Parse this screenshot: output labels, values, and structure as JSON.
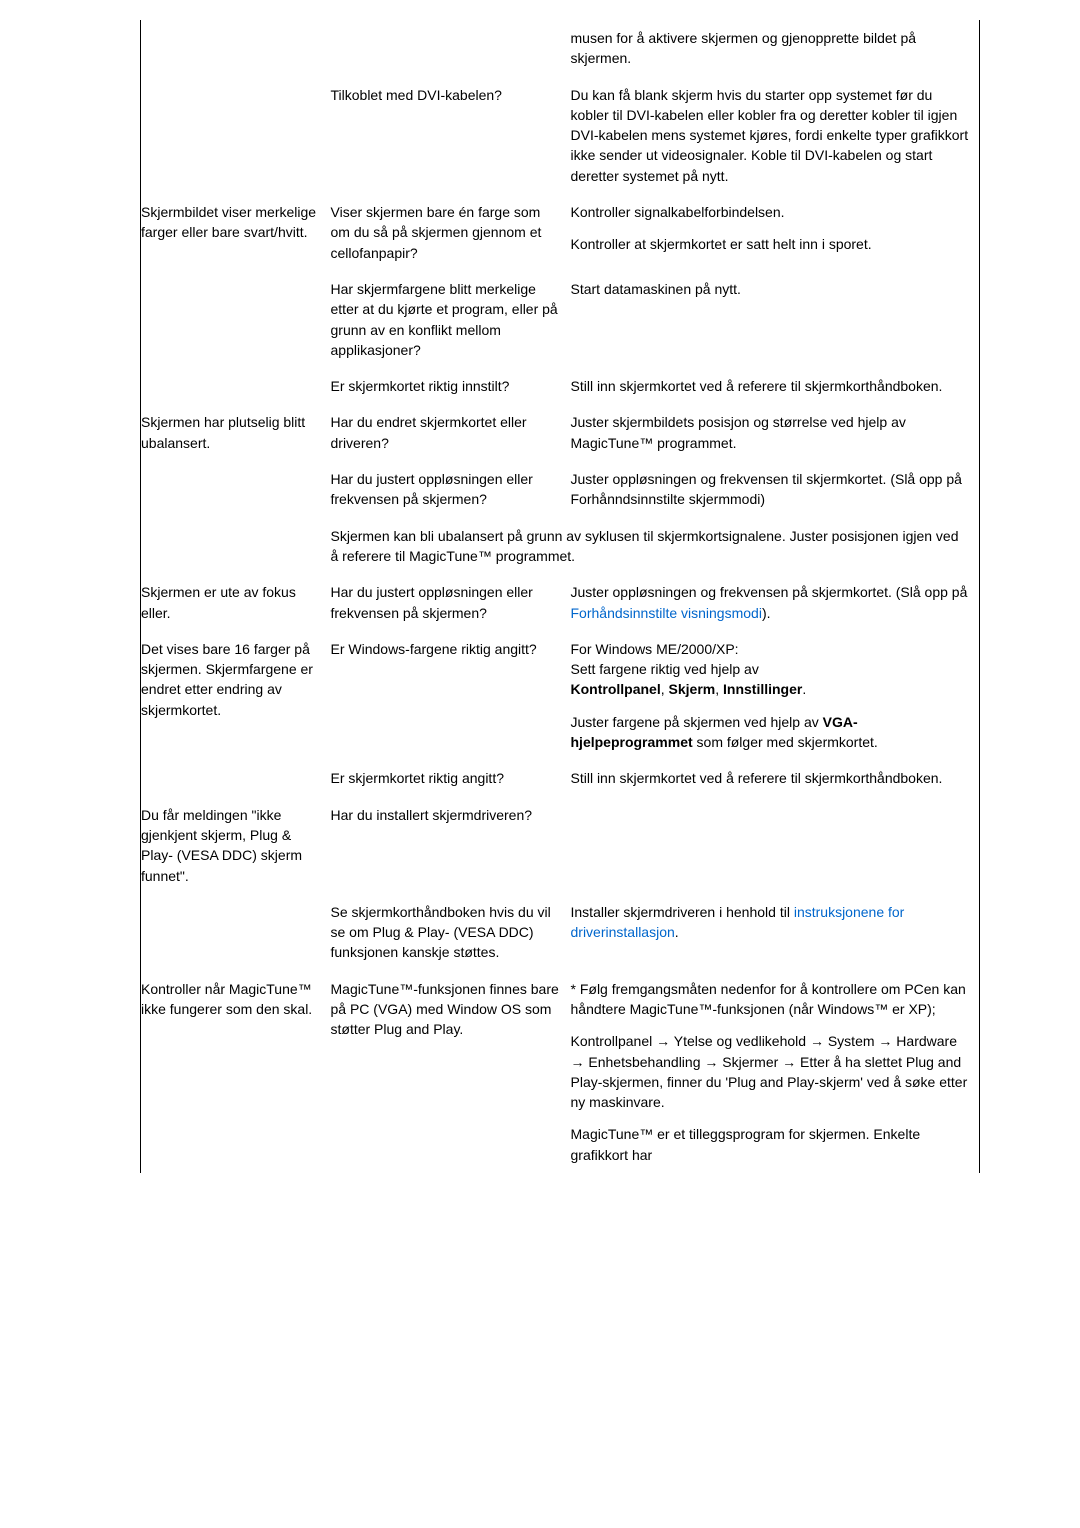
{
  "rows": [
    {
      "c1": "",
      "c2": "",
      "c3": "musen for å aktivere skjermen og gjenopprette bildet på skjermen.",
      "borders": true
    },
    {
      "c1": "",
      "c2": "Tilkoblet med DVI-kabelen?",
      "c3": "Du kan få blank skjerm hvis du starter opp systemet før du kobler til DVI-kabelen eller kobler fra og deretter kobler til igjen DVI-kabelen mens systemet kjøres, fordi enkelte typer grafikkort ikke sender ut videosignaler. Koble til DVI-kabelen og start deretter systemet på nytt.",
      "borders": true
    },
    {
      "c1": "Skjermbildet viser merkelige farger eller bare svart/hvitt.",
      "c2": "Viser skjermen bare én farge som om du så på skjermen gjennom et cellofanpapir?",
      "c3_multi": [
        "Kontroller signalkabelforbindelsen.",
        "Kontroller at skjermkortet er satt helt inn i sporet."
      ],
      "borders": true
    },
    {
      "c1": "",
      "c2": "Har skjermfargene blitt merkelige etter at du kjørte et program, eller på grunn av en konflikt mellom applikasjoner?",
      "c3": "Start datamaskinen på nytt.",
      "borders": true
    },
    {
      "c1": "",
      "c2": "Er skjermkortet riktig innstilt?",
      "c3": "Still inn skjermkortet ved å referere til skjermkorthåndboken.",
      "borders": true
    },
    {
      "c1": "Skjermen har plutselig blitt ubalansert.",
      "c2": "Har du endret skjermkortet eller driveren?",
      "c3": "Juster skjermbildets posisjon og størrelse ved hjelp av MagicTune™ programmet.",
      "borders": true
    },
    {
      "c1": "",
      "c2": "Har du justert oppløsningen eller frekvensen på skjermen?",
      "c3": "Juster oppløsningen og frekvensen til skjermkortet. (Slå opp på Forhånndsinnstilte skjermmodi)",
      "borders": true
    },
    {
      "span23": "Skjermen kan bli ubalansert på grunn av syklusen til skjermkortsignalene. Juster posisjonen igjen ved å referere til MagicTune™ programmet.",
      "borders": true
    },
    {
      "c1": "Skjermen er ute av fokus eller.",
      "c2": "Har du justert oppløsningen eller frekvensen på skjermen?",
      "c3_mixed": {
        "pre": "Juster oppløsningen og frekvensen på skjermkortet.\n(Slå opp på ",
        "link": "Forhåndsinnstilte visningsmodi",
        "post": ")."
      },
      "borders": true
    },
    {
      "c1": "Det vises bare 16 farger på skjermen. Skjermfargene er endret etter endring av skjermkortet.",
      "c2": "Er Windows-fargene riktig angitt?",
      "c3_html": "<p class=\"para\">For Windows ME/2000/XP:<br>Sett fargene riktig ved hjelp av<br><span class=\"bold\">Kontrollpanel</span>, <span class=\"bold\">Skjerm</span>, <span class=\"bold\">Innstillinger</span>.</p><p class=\"para\">Juster fargene på skjermen ved hjelp av <span class=\"bold\">VGA-hjelpeprogrammet</span> som følger med skjermkortet.</p>",
      "borders": true
    },
    {
      "c1": "",
      "c2": "Er skjermkortet riktig angitt?",
      "c3": "Still inn skjermkortet ved å referere til skjermkorthåndboken.",
      "borders": true
    },
    {
      "c1": "Du får meldingen \"ikke gjenkjent skjerm, Plug & Play- (VESA DDC) skjerm funnet\".",
      "c2": "Har du installert skjermdriveren?",
      "c3": "",
      "borders": true
    },
    {
      "c1": "",
      "c2": "Se skjermkorthåndboken hvis du vil se om Plug & Play- (VESA DDC) funksjonen kanskje støttes.",
      "c3_mixed": {
        "pre": "Installer skjermdriveren i henhold til ",
        "link": "instruksjonene for driverinstallasjon",
        "post": "."
      },
      "borders": true,
      "overlap": true
    },
    {
      "c1": "Kontroller når MagicTune™ ikke fungerer som den skal.",
      "c2": "MagicTune™-funksjonen finnes bare på PC (VGA) med Window OS som støtter Plug and Play.",
      "c3_html": "<p class=\"para\">* Følg fremgangsmåten nedenfor for å kontrollere om PCen kan håndtere MagicTune™-funksjonen (når Windows™ er XP);</p><p class=\"para\">Kontrollpanel → Ytelse og vedlikehold → System → Hardware → Enhetsbehandling → Skjermer → Etter å ha slettet Plug and Play-skjermen, finner du 'Plug and Play-skjerm' ved å søke etter ny maskinvare.</p><p class=\"para\">MagicTune™ er et tilleggsprogram for skjermen. Enkelte grafikkort har</p>",
      "borders": true
    }
  ]
}
